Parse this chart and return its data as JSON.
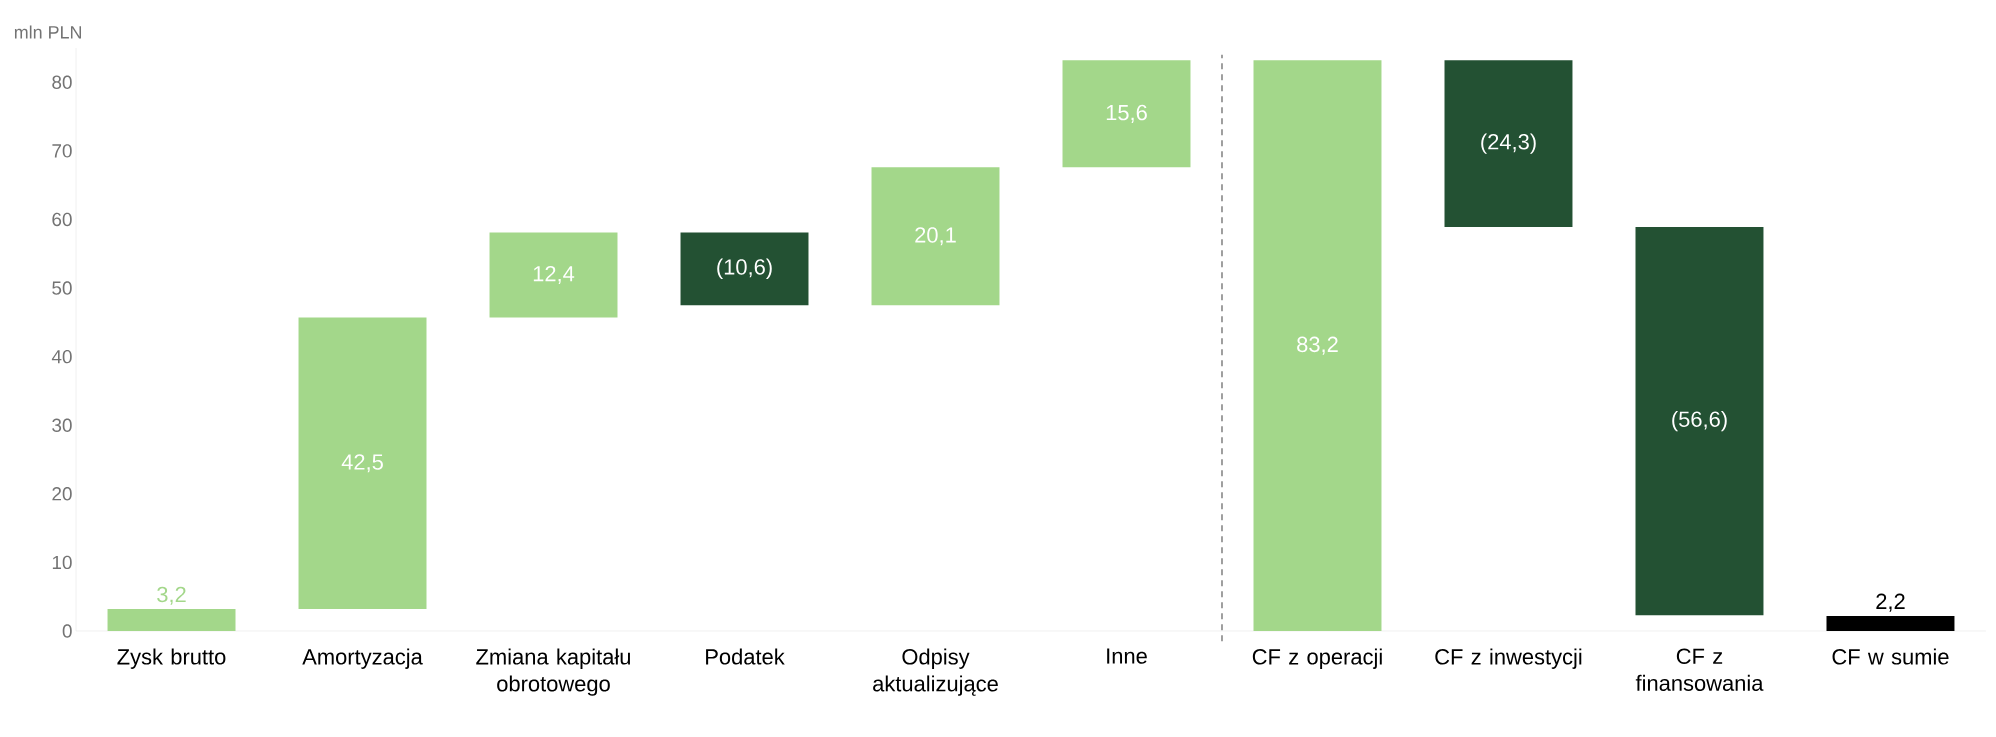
{
  "chart_data": {
    "type": "bar",
    "ylabel": "mln PLN",
    "categories": [
      "Zysk brutto",
      "Amortyzacja",
      "Zmiana kapitału obrotowego",
      "Podatek",
      "Odpisy aktualizujące",
      "Inne",
      "CF z operacji",
      "CF z inwestycji",
      "CF z finansowania",
      "CF w sumie"
    ],
    "values": [
      3.2,
      42.5,
      12.4,
      -10.6,
      20.1,
      15.6,
      83.2,
      -24.3,
      -56.6,
      2.2
    ],
    "base": [
      0,
      3.2,
      45.7,
      58.1,
      47.5,
      67.6,
      0,
      83.2,
      58.9,
      0
    ],
    "colors": [
      "#a3d78a",
      "#a3d78a",
      "#a3d78a",
      "#235133",
      "#a3d78a",
      "#a3d78a",
      "#a3d78a",
      "#235133",
      "#235133",
      "#000000"
    ],
    "value_labels": [
      "3,2",
      "42,5",
      "12,4",
      "(10,6)",
      "20,1",
      "15,6",
      "83,2",
      "(24,3)",
      "(56,6)",
      "2,2"
    ],
    "ylim": [
      0,
      85
    ],
    "yticks": [
      0,
      10,
      20,
      30,
      40,
      50,
      60,
      70,
      80
    ]
  }
}
